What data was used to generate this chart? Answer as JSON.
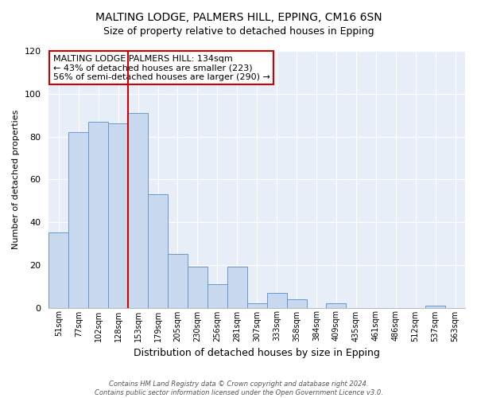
{
  "title": "MALTING LODGE, PALMERS HILL, EPPING, CM16 6SN",
  "subtitle": "Size of property relative to detached houses in Epping",
  "xlabel": "Distribution of detached houses by size in Epping",
  "ylabel": "Number of detached properties",
  "bar_labels": [
    "51sqm",
    "77sqm",
    "102sqm",
    "128sqm",
    "153sqm",
    "179sqm",
    "205sqm",
    "230sqm",
    "256sqm",
    "281sqm",
    "307sqm",
    "333sqm",
    "358sqm",
    "384sqm",
    "409sqm",
    "435sqm",
    "461sqm",
    "486sqm",
    "512sqm",
    "537sqm",
    "563sqm"
  ],
  "bar_values": [
    35,
    82,
    87,
    86,
    91,
    53,
    25,
    19,
    11,
    19,
    2,
    7,
    4,
    0,
    2,
    0,
    0,
    0,
    0,
    1,
    0
  ],
  "bar_color": "#c8d8ee",
  "bar_edge_color": "#6699cc",
  "vline_x": 3.5,
  "vline_color": "#cc0000",
  "ylim": [
    0,
    120
  ],
  "yticks": [
    0,
    20,
    40,
    60,
    80,
    100,
    120
  ],
  "annotation_title": "MALTING LODGE PALMERS HILL: 134sqm",
  "annotation_line1": "← 43% of detached houses are smaller (223)",
  "annotation_line2": "56% of semi-detached houses are larger (290) →",
  "annotation_box_facecolor": "#ffffff",
  "annotation_box_edgecolor": "#cc0000",
  "footer1": "Contains HM Land Registry data © Crown copyright and database right 2024.",
  "footer2": "Contains public sector information licensed under the Open Government Licence v3.0.",
  "bg_color": "#ffffff",
  "plot_bg_color": "#e8eef8",
  "grid_color": "#ffffff",
  "title_fontsize": 10,
  "subtitle_fontsize": 9
}
